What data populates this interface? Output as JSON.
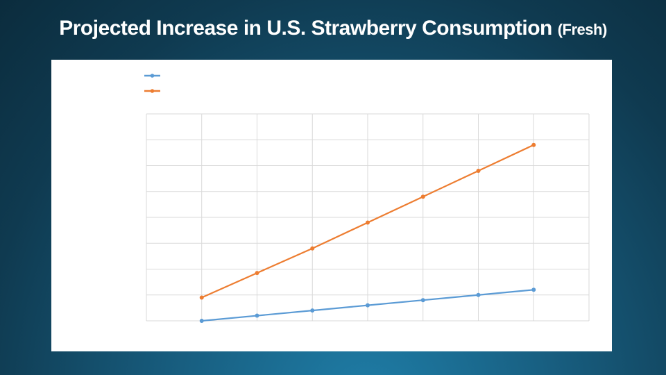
{
  "slide": {
    "title_main": "Projected Increase in U.S. Strawberry Consumption",
    "title_sub": "(Fresh)"
  },
  "colors": {
    "series_1": "#5b9bd5",
    "series_2": "#ed7d31",
    "grid": "#d9d9d9",
    "panel": "#ffffff"
  },
  "chart_data": {
    "type": "line",
    "title": "",
    "xlabel": "",
    "ylabel": "",
    "categories": [
      "",
      "",
      "",
      "",
      "",
      "",
      ""
    ],
    "ylim": [
      0,
      8
    ],
    "grid": true,
    "legend_position": "top-left",
    "series": [
      {
        "values": [
          0.0,
          0.2,
          0.4,
          0.6,
          0.8,
          1.0,
          1.2
        ]
      },
      {
        "values": [
          0.9,
          1.85,
          2.8,
          3.8,
          4.8,
          5.8,
          6.8
        ]
      }
    ]
  }
}
